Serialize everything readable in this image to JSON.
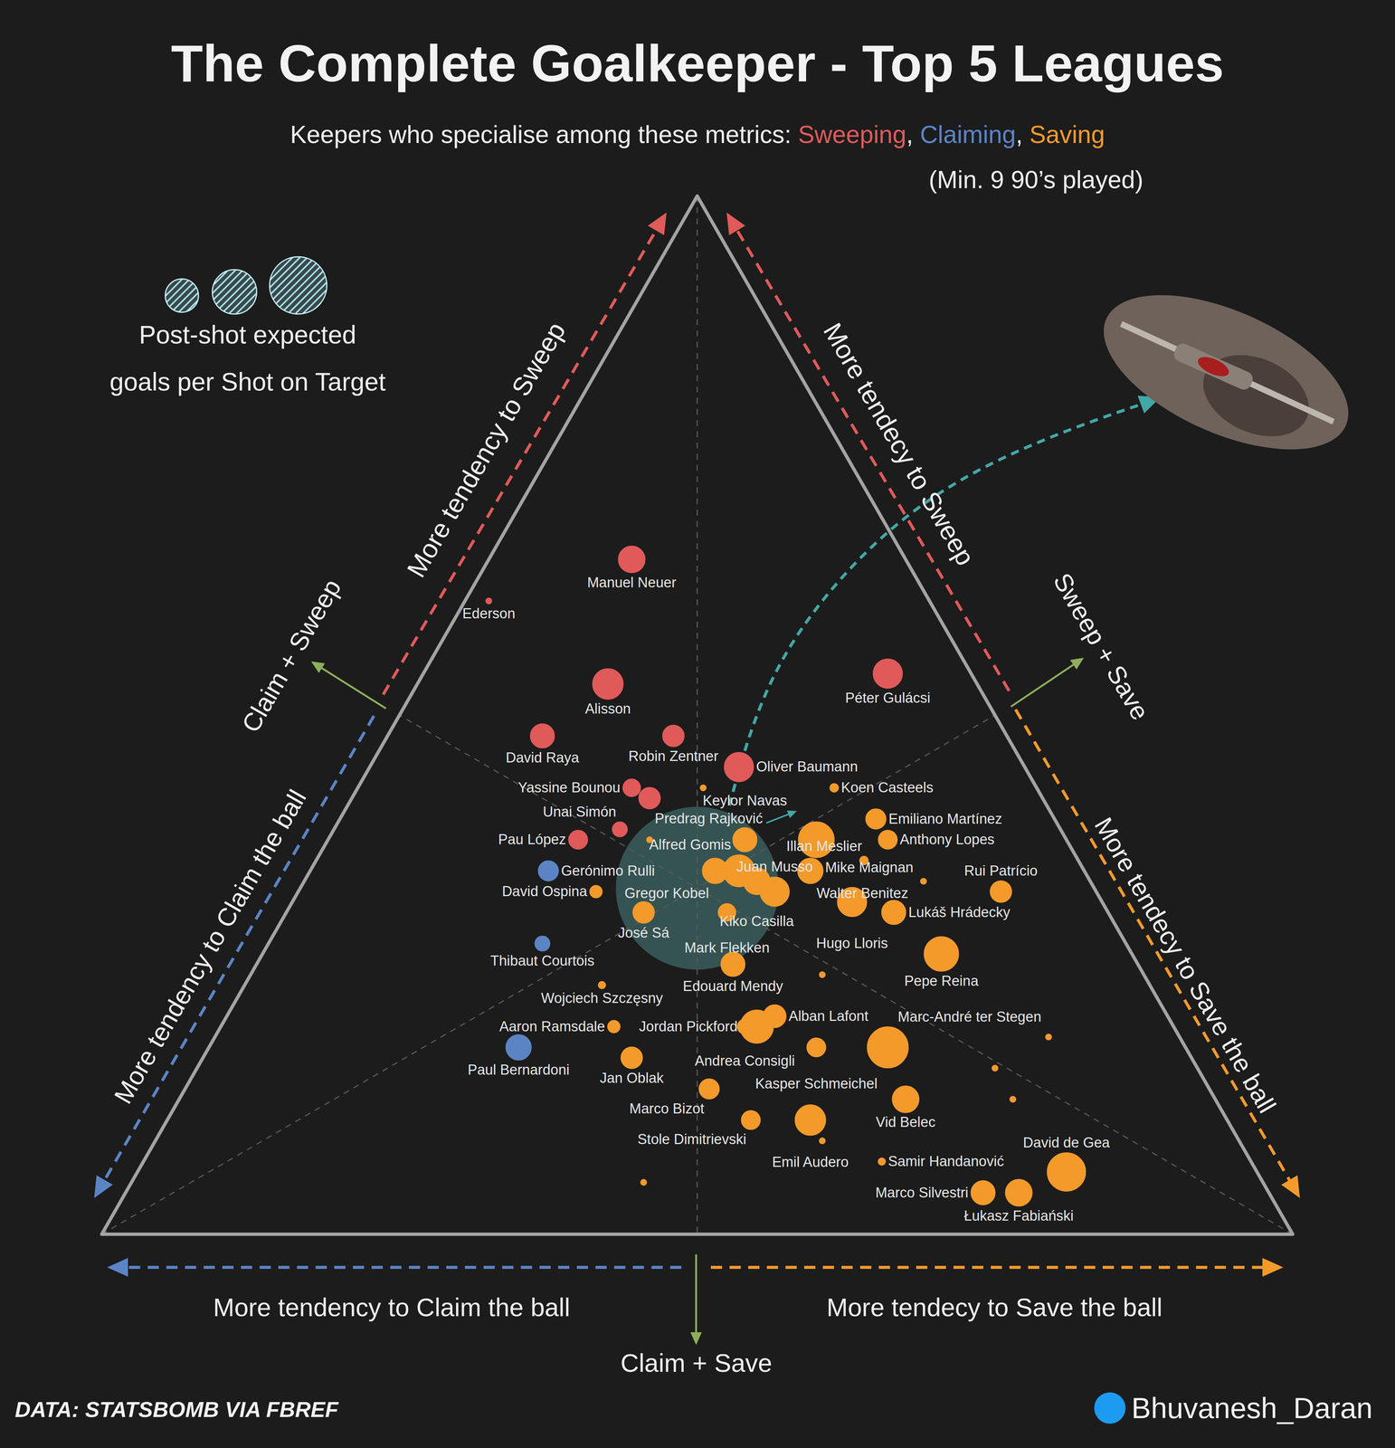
{
  "chart_data": {
    "type": "ternary",
    "title": "The Complete Goalkeeper - Top 5 Leagues",
    "subtitle": "Keepers who specialise among these metrics: Sweeping, Claiming, Saving",
    "subtitle_note": "(Min. 9 90’s played)",
    "size_legend": [
      "Post-shot expected",
      "goals per Shot on Target"
    ],
    "axis_labels": {
      "left_upper": "More tendency to Sweep",
      "left_lower": "More tendency to Claim the ball",
      "right_upper": "More tendecy to Sweep",
      "right_lower": "More tendecy to Save the ball",
      "bottom_left": "More tendency to Claim the ball",
      "bottom_right": "More tendecy to Save the ball"
    },
    "annotations": {
      "left": "Claim + Sweep",
      "right": "Sweep + Save",
      "bottom": "Claim + Save"
    },
    "source": "DATA: STATSBOMB VIA FBREF",
    "credit": "Bhuvanesh_Daran",
    "tick_labels": false,
    "series": [
      {
        "name": "Sweeping",
        "color": "#e05a5a",
        "points": [
          {
            "name": "Manuel Neuer",
            "sweep": 0.65,
            "claim": 0.23,
            "save": 0.12,
            "psxg_per_sot": 0.31
          },
          {
            "name": "Ederson",
            "sweep": 0.61,
            "claim": 0.37,
            "save": 0.02,
            "psxg_per_sot": 0.15
          },
          {
            "name": "Alisson",
            "sweep": 0.53,
            "claim": 0.31,
            "save": 0.16,
            "psxg_per_sot": 0.34
          },
          {
            "name": "Robin Zentner",
            "sweep": 0.48,
            "claim": 0.28,
            "save": 0.24,
            "psxg_per_sot": 0.27
          },
          {
            "name": "David Raya",
            "sweep": 0.48,
            "claim": 0.39,
            "save": 0.13,
            "psxg_per_sot": 0.29
          },
          {
            "name": "Péter Gulácsi",
            "sweep": 0.54,
            "claim": 0.07,
            "save": 0.39,
            "psxg_per_sot": 0.33
          },
          {
            "name": "Oliver Baumann",
            "sweep": 0.45,
            "claim": 0.24,
            "save": 0.31,
            "psxg_per_sot": 0.33
          },
          {
            "name": "Yassine Bounou",
            "sweep": 0.43,
            "claim": 0.34,
            "save": 0.23,
            "psxg_per_sot": 0.24
          },
          {
            "name": "Predrag Rajković",
            "sweep": 0.42,
            "claim": 0.33,
            "save": 0.25,
            "psxg_per_sot": 0.27
          },
          {
            "name": "Pau López",
            "sweep": 0.38,
            "claim": 0.41,
            "save": 0.21,
            "psxg_per_sot": 0.25
          },
          {
            "name": "Unai Simón",
            "sweep": 0.39,
            "claim": 0.37,
            "save": 0.24,
            "psxg_per_sot": 0.22
          }
        ]
      },
      {
        "name": "Claiming",
        "color": "#5b84c4",
        "points": [
          {
            "name": "Gerónimo Rulli",
            "sweep": 0.35,
            "claim": 0.45,
            "save": 0.2,
            "psxg_per_sot": 0.26
          },
          {
            "name": "Thibaut Courtois",
            "sweep": 0.28,
            "claim": 0.49,
            "save": 0.23,
            "psxg_per_sot": 0.22
          },
          {
            "name": "Paul Bernardoni",
            "sweep": 0.18,
            "claim": 0.56,
            "save": 0.26,
            "psxg_per_sot": 0.3
          }
        ]
      },
      {
        "name": "Saving",
        "color": "#f39a2b",
        "points": [
          {
            "name": "Koen Casteels",
            "sweep": 0.43,
            "claim": 0.17,
            "save": 0.4,
            "psxg_per_sot": 0.17
          },
          {
            "name": "Keylor Navas",
            "sweep": 0.38,
            "claim": 0.27,
            "save": 0.35,
            "psxg_per_sot": 0.29
          },
          {
            "name": "Mike Maignan",
            "sweep": 0.38,
            "claim": 0.21,
            "save": 0.41,
            "psxg_per_sot": 0.38
          },
          {
            "name": "Emiliano Martínez",
            "sweep": 0.4,
            "claim": 0.15,
            "save": 0.45,
            "psxg_per_sot": 0.26
          },
          {
            "name": "Anthony Lopes",
            "sweep": 0.38,
            "claim": 0.15,
            "save": 0.47,
            "psxg_per_sot": 0.25
          },
          {
            "name": "Alfred Gomis",
            "sweep": 0.35,
            "claim": 0.29,
            "save": 0.36,
            "psxg_per_sot": 0.35
          },
          {
            "name": "Gregor Kobel",
            "sweep": 0.35,
            "claim": 0.31,
            "save": 0.34,
            "psxg_per_sot": 0.3
          },
          {
            "name": "Kiko Casilla",
            "sweep": 0.34,
            "claim": 0.28,
            "save": 0.38,
            "psxg_per_sot": 0.31
          },
          {
            "name": "Walter Benitez",
            "sweep": 0.35,
            "claim": 0.23,
            "save": 0.42,
            "psxg_per_sot": 0.3
          },
          {
            "name": "Illan Meslier",
            "sweep": 0.36,
            "claim": 0.18,
            "save": 0.46,
            "psxg_per_sot": 0.17
          },
          {
            "name": "Juan Musso",
            "sweep": 0.33,
            "claim": 0.27,
            "save": 0.4,
            "psxg_per_sot": 0.33
          },
          {
            "name": "Mark Flekken",
            "sweep": 0.31,
            "claim": 0.32,
            "save": 0.37,
            "psxg_per_sot": 0.24
          },
          {
            "name": "Hugo Lloris",
            "sweep": 0.32,
            "claim": 0.21,
            "save": 0.47,
            "psxg_per_sot": 0.33
          },
          {
            "name": "Lukáš Hrádecky",
            "sweep": 0.31,
            "claim": 0.18,
            "save": 0.51,
            "psxg_per_sot": 0.29
          },
          {
            "name": "Rui Patrício",
            "sweep": 0.33,
            "claim": 0.08,
            "save": 0.59,
            "psxg_per_sot": 0.27
          },
          {
            "name": "Pepe Reina",
            "sweep": 0.27,
            "claim": 0.16,
            "save": 0.57,
            "psxg_per_sot": 0.37
          },
          {
            "name": "José Sá",
            "sweep": 0.31,
            "claim": 0.39,
            "save": 0.3,
            "psxg_per_sot": 0.27
          },
          {
            "name": "David Ospina",
            "sweep": 0.33,
            "claim": 0.42,
            "save": 0.25,
            "psxg_per_sot": 0.2
          },
          {
            "name": "Edouard Mendy",
            "sweep": 0.26,
            "claim": 0.34,
            "save": 0.4,
            "psxg_per_sot": 0.29
          },
          {
            "name": "Wojciech Szczęsny",
            "sweep": 0.24,
            "claim": 0.46,
            "save": 0.3,
            "psxg_per_sot": 0.16
          },
          {
            "name": "Alban Lafont",
            "sweep": 0.21,
            "claim": 0.33,
            "save": 0.46,
            "psxg_per_sot": 0.28
          },
          {
            "name": "Andrea Consigli",
            "sweep": 0.2,
            "claim": 0.36,
            "save": 0.44,
            "psxg_per_sot": 0.22
          },
          {
            "name": "Jordan Pickford",
            "sweep": 0.2,
            "claim": 0.35,
            "save": 0.45,
            "psxg_per_sot": 0.36
          },
          {
            "name": "Kasper Schmeichel",
            "sweep": 0.18,
            "claim": 0.31,
            "save": 0.51,
            "psxg_per_sot": 0.25
          },
          {
            "name": "Marc-André ter Stegen",
            "sweep": 0.18,
            "claim": 0.25,
            "save": 0.57,
            "psxg_per_sot": 0.42
          },
          {
            "name": "Aaron Ramsdale",
            "sweep": 0.2,
            "claim": 0.47,
            "save": 0.33,
            "psxg_per_sot": 0.2
          },
          {
            "name": "Jan Oblak",
            "sweep": 0.17,
            "claim": 0.47,
            "save": 0.36,
            "psxg_per_sot": 0.27
          },
          {
            "name": "Marco Bizot",
            "sweep": 0.14,
            "claim": 0.42,
            "save": 0.44,
            "psxg_per_sot": 0.26
          },
          {
            "name": "Vid Belec",
            "sweep": 0.13,
            "claim": 0.26,
            "save": 0.61,
            "psxg_per_sot": 0.31
          },
          {
            "name": "Stole Dimitrievski",
            "sweep": 0.11,
            "claim": 0.4,
            "save": 0.49,
            "psxg_per_sot": 0.25
          },
          {
            "name": "Emil Audero",
            "sweep": 0.11,
            "claim": 0.35,
            "save": 0.54,
            "psxg_per_sot": 0.34
          },
          {
            "name": "Samir Handanović",
            "sweep": 0.07,
            "claim": 0.31,
            "save": 0.62,
            "psxg_per_sot": 0.16
          },
          {
            "name": "David de Gea",
            "sweep": 0.06,
            "claim": 0.16,
            "save": 0.78,
            "psxg_per_sot": 0.4
          },
          {
            "name": "Łukasz Fabiański",
            "sweep": 0.04,
            "claim": 0.21,
            "save": 0.75,
            "psxg_per_sot": 0.31
          },
          {
            "name": "Marco Silvestri",
            "sweep": 0.04,
            "claim": 0.24,
            "save": 0.72,
            "psxg_per_sot": 0.29
          },
          {
            "name": null,
            "sweep": 0.43,
            "claim": 0.28,
            "save": 0.29,
            "psxg_per_sot": 0.15
          },
          {
            "name": null,
            "sweep": 0.38,
            "claim": 0.35,
            "save": 0.27,
            "psxg_per_sot": 0.15
          },
          {
            "name": null,
            "sweep": 0.25,
            "claim": 0.27,
            "save": 0.48,
            "psxg_per_sot": 0.15
          },
          {
            "name": null,
            "sweep": 0.34,
            "claim": 0.14,
            "save": 0.52,
            "psxg_per_sot": 0.15
          },
          {
            "name": null,
            "sweep": 0.19,
            "claim": 0.11,
            "save": 0.7,
            "psxg_per_sot": 0.15
          },
          {
            "name": null,
            "sweep": 0.16,
            "claim": 0.17,
            "save": 0.67,
            "psxg_per_sot": 0.15
          },
          {
            "name": null,
            "sweep": 0.13,
            "claim": 0.17,
            "save": 0.7,
            "psxg_per_sot": 0.15
          },
          {
            "name": null,
            "sweep": 0.09,
            "claim": 0.35,
            "save": 0.56,
            "psxg_per_sot": 0.15
          },
          {
            "name": null,
            "sweep": 0.05,
            "claim": 0.52,
            "save": 0.43,
            "psxg_per_sot": 0.15
          }
        ]
      }
    ]
  }
}
